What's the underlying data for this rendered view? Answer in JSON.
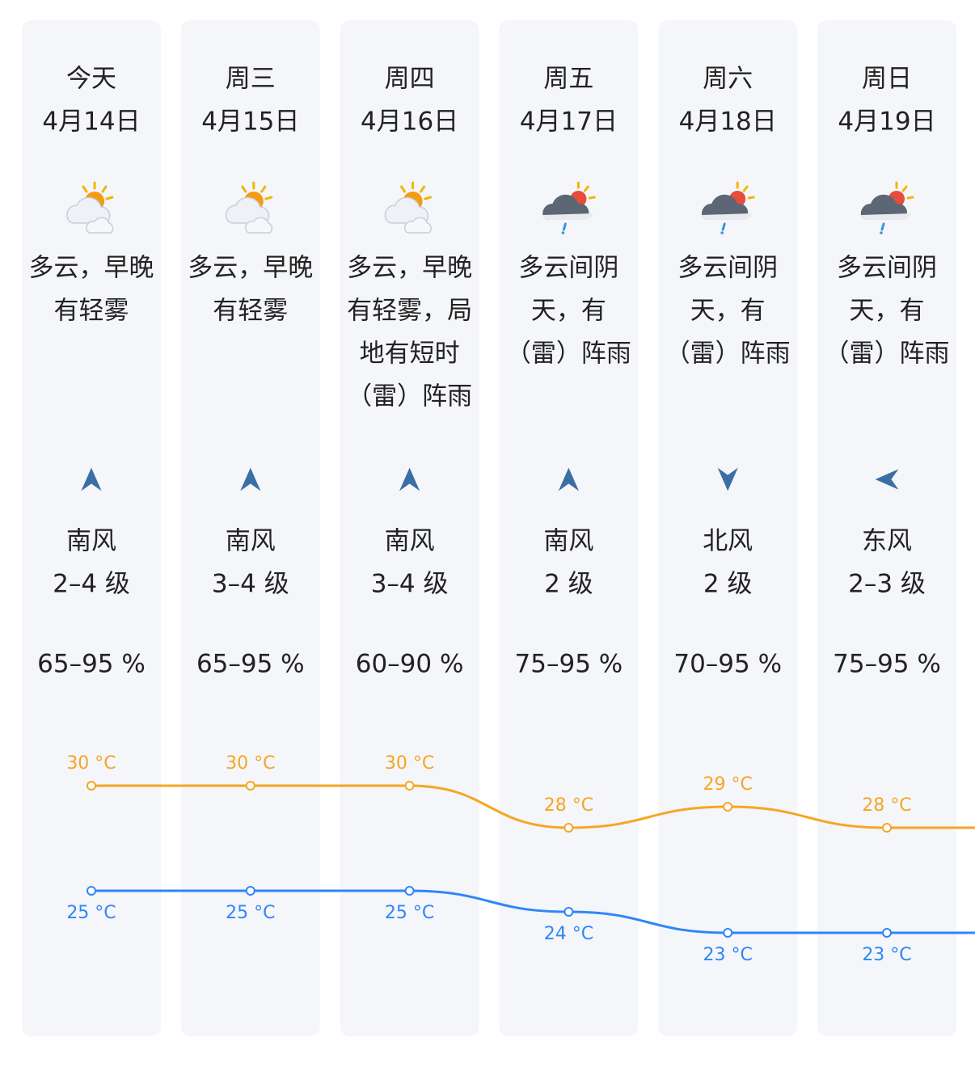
{
  "days": [
    {
      "weekday": "今天",
      "date": "4月14日",
      "weather": [
        "多云，早晚",
        "有轻雾"
      ],
      "wind_dir": "南风",
      "wind_level": "2–4 级",
      "humidity": "65–95 %",
      "high": {
        "value": 30,
        "label": "30 °C"
      },
      "low": {
        "value": 25,
        "label": "25 °C"
      }
    },
    {
      "weekday": "周三",
      "date": "4月15日",
      "weather": [
        "多云，早晚",
        "有轻雾"
      ],
      "wind_dir": "南风",
      "wind_level": "3–4 级",
      "humidity": "65–95 %",
      "high": {
        "value": 30,
        "label": "30 °C"
      },
      "low": {
        "value": 25,
        "label": "25 °C"
      }
    },
    {
      "weekday": "周四",
      "date": "4月16日",
      "weather": [
        "多云，早晚",
        "有轻雾，局",
        "地有短时",
        "（雷）阵雨"
      ],
      "wind_dir": "南风",
      "wind_level": "3–4 级",
      "humidity": "60–90 %",
      "high": {
        "value": 30,
        "label": "30 °C"
      },
      "low": {
        "value": 25,
        "label": "25 °C"
      }
    },
    {
      "weekday": "周五",
      "date": "4月17日",
      "weather": [
        "多云间阴",
        "天，有",
        "（雷）阵雨"
      ],
      "wind_dir": "南风",
      "wind_level": "2 级",
      "humidity": "75–95 %",
      "high": {
        "value": 28,
        "label": "28 °C"
      },
      "low": {
        "value": 24,
        "label": "24 °C"
      }
    },
    {
      "weekday": "周六",
      "date": "4月18日",
      "weather": [
        "多云间阴",
        "天，有",
        "（雷）阵雨"
      ],
      "wind_dir": "北风",
      "wind_level": "2 级",
      "humidity": "70–95 %",
      "high": {
        "value": 29,
        "label": "29 °C"
      },
      "low": {
        "value": 23,
        "label": "23 °C"
      }
    },
    {
      "weekday": "周日",
      "date": "4月19日",
      "weather": [
        "多云间阴",
        "天，有",
        "（雷）阵雨"
      ],
      "wind_dir": "东风",
      "wind_level": "2–3 级",
      "humidity": "75–95 %",
      "high": {
        "value": 28,
        "label": "28 °C"
      },
      "low": {
        "value": 23,
        "label": "23 °C"
      }
    }
  ]
}
